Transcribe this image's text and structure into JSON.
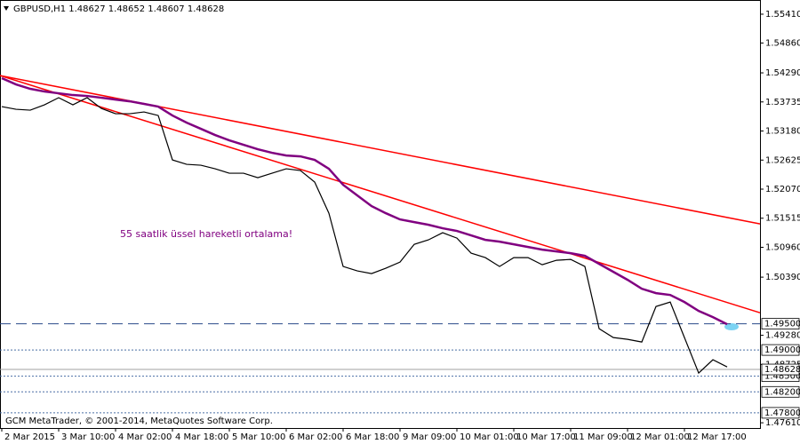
{
  "chart_data": {
    "type": "price",
    "title": "GBPUSD,H1  1.48627 1.48652 1.48607 1.48628",
    "annotation": "55 saatlik üssel hareketli ortalama!",
    "footer": "GCM MetaTrader, © 2001-2014, MetaQuotes Software Corp.",
    "categories": [
      "2 Mar 2015",
      null,
      null,
      null,
      "3 Mar 10:00",
      null,
      null,
      null,
      "4 Mar 02:00",
      null,
      null,
      null,
      "4 Mar 18:00",
      null,
      null,
      null,
      "5 Mar 10:00",
      null,
      null,
      null,
      "6 Mar 02:00",
      null,
      null,
      null,
      "6 Mar 18:00",
      null,
      null,
      null,
      "9 Mar 09:00",
      null,
      null,
      null,
      "10 Mar 01:00",
      null,
      null,
      null,
      "10 Mar 17:00",
      null,
      null,
      null,
      "11 Mar 09:00",
      null,
      null,
      null,
      "12 Mar 01:00",
      null,
      null,
      null,
      "12 Mar 17:00",
      null,
      null,
      null
    ],
    "series": [
      {
        "color": "#000000",
        "values": [
          1.53646,
          1.53595,
          1.53578,
          1.5368,
          1.53816,
          1.5368,
          1.53816,
          1.53612,
          1.5351,
          1.5351,
          1.53544,
          1.53476,
          1.52628,
          1.52544,
          1.52527,
          1.52459,
          1.52374,
          1.52374,
          1.52289,
          1.52374,
          1.52459,
          1.52425,
          1.52205,
          1.51611,
          1.50594,
          1.50509,
          1.50458,
          1.5056,
          1.50678,
          1.51017,
          1.51102,
          1.51238,
          1.51136,
          1.50848,
          1.50763,
          1.50594,
          1.50763,
          1.50763,
          1.50627,
          1.50712,
          1.50729,
          1.50594,
          1.49406,
          1.49237,
          1.49203,
          1.49152,
          1.4983,
          1.49915,
          1.49237,
          1.48559,
          1.48813,
          1.48677
        ]
      },
      {
        "color": "#800080",
        "values": [
          1.54189,
          1.5407,
          1.53985,
          1.53934,
          1.539,
          1.53866,
          1.53849,
          1.53815,
          1.53781,
          1.53747,
          1.53697,
          1.53646,
          1.53476,
          1.5334,
          1.53222,
          1.53103,
          1.53001,
          1.52916,
          1.52832,
          1.52764,
          1.52713,
          1.52696,
          1.52628,
          1.52459,
          1.52153,
          1.5195,
          1.51746,
          1.51611,
          1.51492,
          1.51441,
          1.5139,
          1.51323,
          1.51272,
          1.51187,
          1.51102,
          1.51068,
          1.51017,
          1.50966,
          1.50915,
          1.50882,
          1.50848,
          1.50797,
          1.50644,
          1.50491,
          1.50339,
          1.50169,
          1.50085,
          1.5005,
          1.49915,
          1.49745,
          1.49627,
          1.49491
        ]
      }
    ],
    "trendlines": [
      {
        "color": "#ff0000",
        "values": [
          1.54239,
          1.51407
        ]
      },
      {
        "color": "#ff0000",
        "values": [
          1.54239,
          1.49711
        ]
      }
    ],
    "levels": [
      {
        "value": 1.495,
        "label": "1.49500",
        "color": "#2a4a8a",
        "style": "dashed"
      },
      {
        "value": 1.49,
        "label": "1.49000",
        "color": "#4a6fa5",
        "style": "dotted"
      },
      {
        "value": 1.485,
        "label": "1.48500",
        "color": "#4a6fa5",
        "style": "dotted"
      },
      {
        "value": 1.482,
        "label": "1.48200",
        "color": "#4a6fa5",
        "style": "dotted"
      },
      {
        "value": 1.478,
        "label": "1.47800",
        "color": "#4a6fa5",
        "style": "dotted"
      },
      {
        "value": 1.48628,
        "label": "1.48628",
        "color": "#a0a0a0",
        "style": "solid"
      }
    ],
    "ylim": [
      1.4751,
      1.5563
    ],
    "yticks": [
      {
        "value": 1.5541,
        "label": "1.55410"
      },
      {
        "value": 1.5486,
        "label": "1.54860"
      },
      {
        "value": 1.5429,
        "label": "1.54290"
      },
      {
        "value": 1.53735,
        "label": "1.53735"
      },
      {
        "value": 1.5318,
        "label": "1.53180"
      },
      {
        "value": 1.52625,
        "label": "1.52625"
      },
      {
        "value": 1.5207,
        "label": "1.52070"
      },
      {
        "value": 1.51515,
        "label": "1.51515"
      },
      {
        "value": 1.5096,
        "label": "1.50960"
      },
      {
        "value": 1.5039,
        "label": "1.50390"
      },
      {
        "value": 1.4928,
        "label": "1.49280"
      },
      {
        "value": 1.48725,
        "label": "1.48725"
      },
      {
        "value": 1.4761,
        "label": "1.47610"
      }
    ]
  }
}
